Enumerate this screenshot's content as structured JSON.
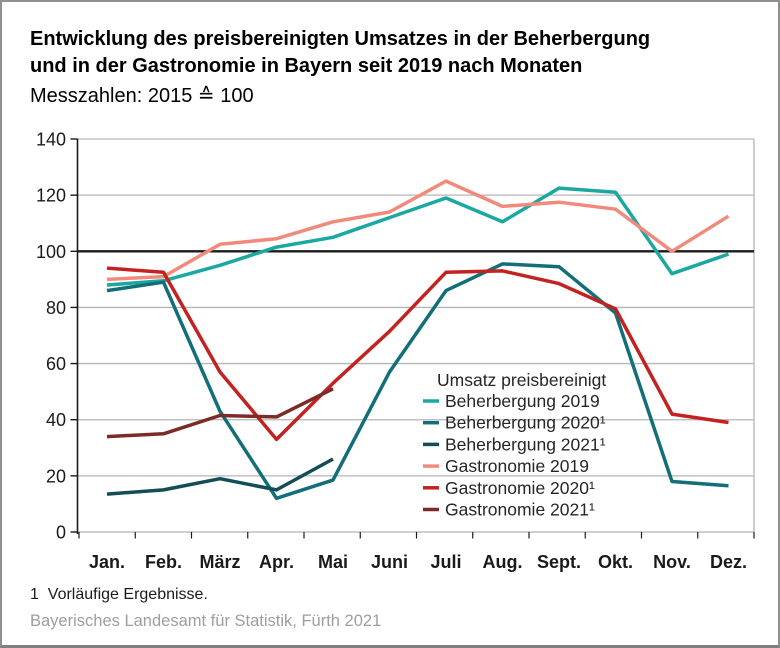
{
  "chart_data": {
    "type": "line",
    "title_line1": "Entwicklung des preisbereinigten Umsatzes in der Beherbergung",
    "title_line2": "und in der Gastronomie in Bayern seit 2019 nach Monaten",
    "subtitle": "Messzahlen: 2015 ≙ 100",
    "categories": [
      "Jan.",
      "Feb.",
      "März",
      "Apr.",
      "Mai",
      "Juni",
      "Juli",
      "Aug.",
      "Sept.",
      "Okt.",
      "Nov.",
      "Dez."
    ],
    "ylim": [
      0,
      140
    ],
    "y_ticks": [
      0,
      20,
      40,
      60,
      80,
      100,
      120,
      140
    ],
    "reference_line_y": 100,
    "grid": "horizontal",
    "legend_title": "Umsatz preisbereinigt",
    "legend_position": "inside right-center",
    "series": [
      {
        "name": "Beherbergung 2019",
        "color": "#1aa8a0",
        "values": [
          88,
          89.5,
          95,
          101.5,
          105,
          112,
          119,
          110.5,
          122.5,
          121,
          92,
          99
        ]
      },
      {
        "name": "Beherbergung 2020¹",
        "color": "#126e78",
        "values": [
          86,
          89,
          43,
          12,
          18.5,
          57,
          86,
          95.5,
          94.5,
          78,
          18,
          16.5
        ]
      },
      {
        "name": "Beherbergung 2021¹",
        "color": "#134d55",
        "values": [
          13.5,
          15,
          19,
          15,
          26,
          null,
          null,
          null,
          null,
          null,
          null,
          null
        ]
      },
      {
        "name": "Gastronomie 2019",
        "color": "#f28a7c",
        "values": [
          90,
          91,
          102.5,
          104.5,
          110.5,
          114,
          125,
          116,
          117.5,
          115,
          100,
          112.5
        ]
      },
      {
        "name": "Gastronomie 2020¹",
        "color": "#c42121",
        "values": [
          94,
          92.5,
          57,
          33,
          53,
          71.5,
          92.5,
          93,
          88.5,
          79.5,
          42,
          39
        ]
      },
      {
        "name": "Gastronomie 2021¹",
        "color": "#7d2b26",
        "values": [
          34,
          35,
          41.5,
          41,
          51,
          null,
          null,
          null,
          null,
          null,
          null,
          null
        ]
      }
    ]
  },
  "footnote": "1  Vorläufige Ergebnisse.",
  "source": "Bayerisches Landesamt für Statistik, Fürth 2021"
}
